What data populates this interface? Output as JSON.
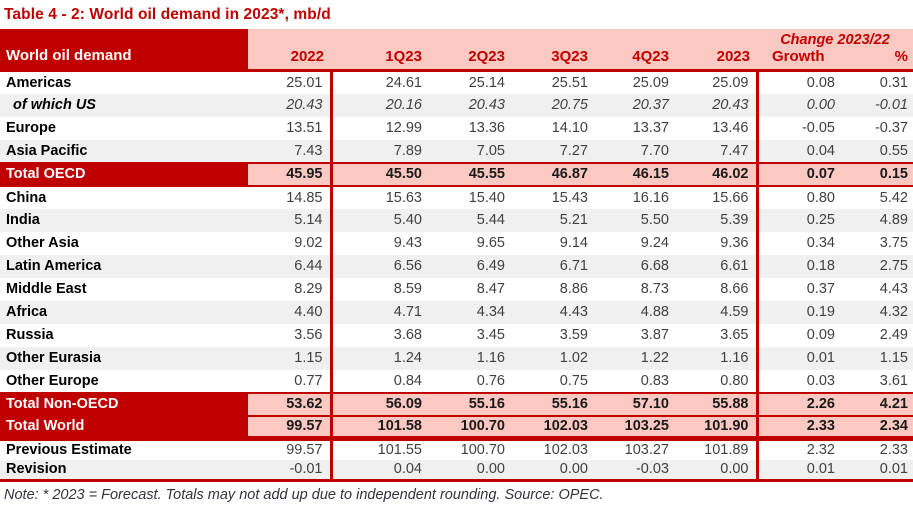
{
  "title": "Table 4 - 2: World oil demand in 2023*, mb/d",
  "colors": {
    "dark_red": "#C00000",
    "pink": "#FBC9C2",
    "stripe_gray": "#F0F0F0"
  },
  "header": {
    "label": "World oil demand",
    "change_label": "Change 2023/22",
    "columns": [
      "2022",
      "1Q23",
      "2Q23",
      "3Q23",
      "4Q23",
      "2023",
      "Growth",
      "%"
    ]
  },
  "rows": [
    {
      "label": "Americas",
      "style": "normal",
      "section": "main",
      "values": [
        "25.01",
        "24.61",
        "25.14",
        "25.51",
        "25.09",
        "25.09",
        "0.08",
        "0.31"
      ]
    },
    {
      "label": "of which US",
      "style": "italic",
      "section": "main",
      "values": [
        "20.43",
        "20.16",
        "20.43",
        "20.75",
        "20.37",
        "20.43",
        "0.00",
        "-0.01"
      ]
    },
    {
      "label": "Europe",
      "style": "normal",
      "section": "main",
      "values": [
        "13.51",
        "12.99",
        "13.36",
        "14.10",
        "13.37",
        "13.46",
        "-0.05",
        "-0.37"
      ]
    },
    {
      "label": "Asia Pacific",
      "style": "normal",
      "section": "main",
      "values": [
        "7.43",
        "7.89",
        "7.05",
        "7.27",
        "7.70",
        "7.47",
        "0.04",
        "0.55"
      ]
    },
    {
      "label": "Total OECD",
      "style": "total",
      "section": "main",
      "values": [
        "45.95",
        "45.50",
        "45.55",
        "46.87",
        "46.15",
        "46.02",
        "0.07",
        "0.15"
      ]
    },
    {
      "label": "China",
      "style": "normal",
      "section": "main",
      "values": [
        "14.85",
        "15.63",
        "15.40",
        "15.43",
        "16.16",
        "15.66",
        "0.80",
        "5.42"
      ]
    },
    {
      "label": "India",
      "style": "normal",
      "section": "main",
      "values": [
        "5.14",
        "5.40",
        "5.44",
        "5.21",
        "5.50",
        "5.39",
        "0.25",
        "4.89"
      ]
    },
    {
      "label": "Other Asia",
      "style": "normal",
      "section": "main",
      "values": [
        "9.02",
        "9.43",
        "9.65",
        "9.14",
        "9.24",
        "9.36",
        "0.34",
        "3.75"
      ]
    },
    {
      "label": "Latin America",
      "style": "normal",
      "section": "main",
      "values": [
        "6.44",
        "6.56",
        "6.49",
        "6.71",
        "6.68",
        "6.61",
        "0.18",
        "2.75"
      ]
    },
    {
      "label": "Middle East",
      "style": "normal",
      "section": "main",
      "values": [
        "8.29",
        "8.59",
        "8.47",
        "8.86",
        "8.73",
        "8.66",
        "0.37",
        "4.43"
      ]
    },
    {
      "label": "Africa",
      "style": "normal",
      "section": "main",
      "values": [
        "4.40",
        "4.71",
        "4.34",
        "4.43",
        "4.88",
        "4.59",
        "0.19",
        "4.32"
      ]
    },
    {
      "label": "Russia",
      "style": "normal",
      "section": "main",
      "values": [
        "3.56",
        "3.68",
        "3.45",
        "3.59",
        "3.87",
        "3.65",
        "0.09",
        "2.49"
      ]
    },
    {
      "label": "Other Eurasia",
      "style": "normal",
      "section": "main",
      "values": [
        "1.15",
        "1.24",
        "1.16",
        "1.02",
        "1.22",
        "1.16",
        "0.01",
        "1.15"
      ]
    },
    {
      "label": "Other Europe",
      "style": "normal",
      "section": "main",
      "values": [
        "0.77",
        "0.84",
        "0.76",
        "0.75",
        "0.83",
        "0.80",
        "0.03",
        "3.61"
      ]
    },
    {
      "label": "Total Non-OECD",
      "style": "total",
      "section": "main",
      "values": [
        "53.62",
        "56.09",
        "55.16",
        "55.16",
        "57.10",
        "55.88",
        "2.26",
        "4.21"
      ]
    },
    {
      "label": "Total World",
      "style": "total-world",
      "section": "main",
      "values": [
        "99.57",
        "101.58",
        "100.70",
        "102.03",
        "103.25",
        "101.90",
        "2.33",
        "2.34"
      ]
    },
    {
      "label": "Previous Estimate",
      "style": "normal",
      "section": "estimate",
      "values": [
        "99.57",
        "101.55",
        "100.70",
        "102.03",
        "103.27",
        "101.89",
        "2.32",
        "2.33"
      ]
    },
    {
      "label": "Revision",
      "style": "normal",
      "section": "estimate",
      "values": [
        "-0.01",
        "0.04",
        "0.00",
        "0.00",
        "-0.03",
        "0.00",
        "0.01",
        "0.01"
      ]
    }
  ],
  "note": "Note: * 2023 = Forecast. Totals may not add up due to independent rounding. Source: OPEC."
}
